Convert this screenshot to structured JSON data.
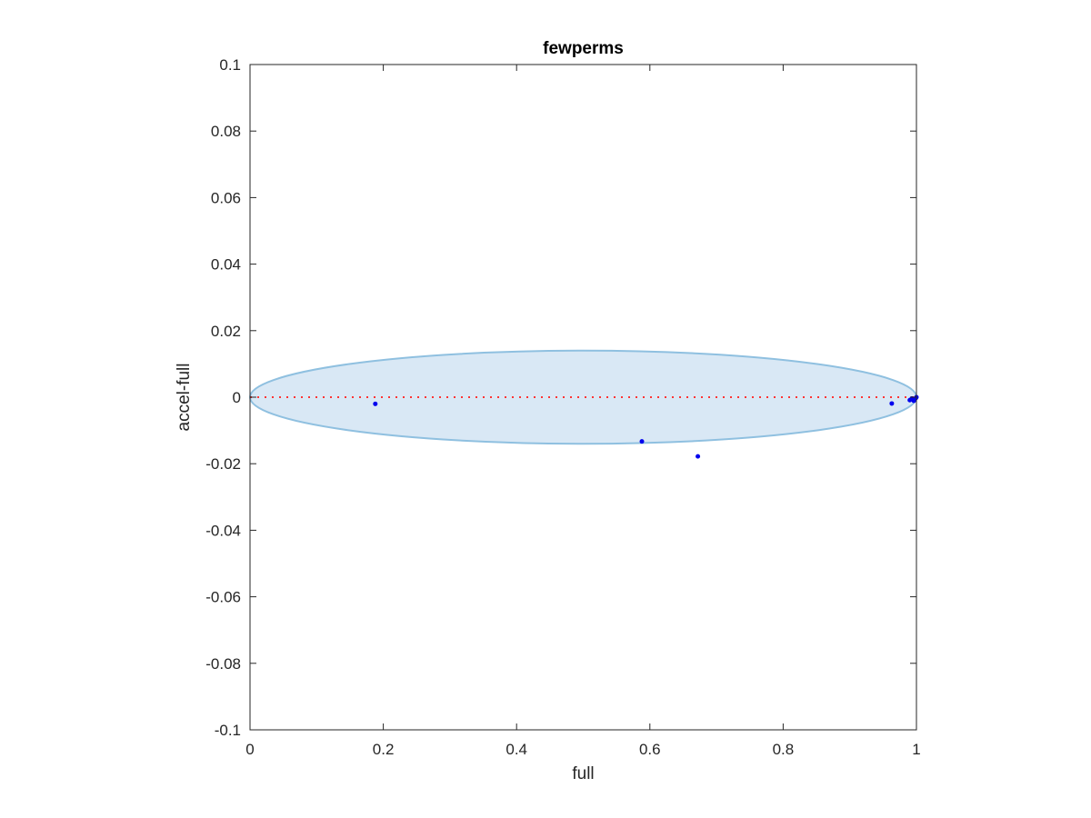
{
  "chart_data": {
    "type": "scatter",
    "title": "fewperms",
    "xlabel": "full",
    "ylabel": "accel-full",
    "xlim": [
      0,
      1
    ],
    "ylim": [
      -0.1,
      0.1
    ],
    "xticks": [
      0,
      0.2,
      0.4,
      0.6,
      0.8,
      1
    ],
    "xtick_labels": [
      "0",
      "0.2",
      "0.4",
      "0.6",
      "0.8",
      "1"
    ],
    "yticks": [
      0.1,
      0.08,
      0.06,
      0.04,
      0.02,
      0,
      -0.02,
      -0.04,
      -0.06,
      -0.08,
      -0.1
    ],
    "ytick_labels": [
      "0.1",
      "0.08",
      "0.06",
      "0.04",
      "0.02",
      "0",
      "-0.02",
      "-0.04",
      "-0.06",
      "-0.08",
      "-0.1"
    ],
    "grid": false,
    "points": [
      {
        "x": 0.188,
        "y": -0.002
      },
      {
        "x": 0.588,
        "y": -0.0133
      },
      {
        "x": 0.672,
        "y": -0.0178
      },
      {
        "x": 0.963,
        "y": -0.0019
      },
      {
        "x": 0.99,
        "y": -0.0009
      },
      {
        "x": 0.993,
        "y": -0.0004
      },
      {
        "x": 0.996,
        "y": -0.0011
      },
      {
        "x": 0.999,
        "y": -0.0003
      },
      {
        "x": 1.0,
        "y": 0.0
      }
    ],
    "ellipse": {
      "cx": 0.5,
      "cy": 0,
      "rx": 0.5,
      "ry": 0.014,
      "fill": "#d9e8f5",
      "stroke": "#8fc0e0"
    },
    "reference_line": {
      "y": 0,
      "color": "#ff3333",
      "style": "dotted"
    },
    "colors": {
      "points": "#0000ee",
      "axes": "#262626"
    }
  }
}
